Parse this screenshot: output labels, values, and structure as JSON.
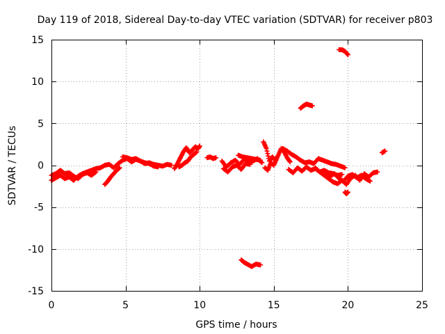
{
  "chart_data": {
    "type": "scatter",
    "title": "Day 119 of 2018, Sidereal Day-to-day VTEC variation (SDTVAR) for receiver p803",
    "xlabel": "GPS time / hours",
    "ylabel": "SDTVAR / TECUs",
    "xlim": [
      0,
      25
    ],
    "ylim": [
      -15,
      15
    ],
    "xticks": [
      0,
      5,
      10,
      15,
      20,
      25
    ],
    "yticks": [
      -15,
      -10,
      -5,
      0,
      5,
      10,
      15
    ],
    "xtick_labels": [
      "0",
      "5",
      "10",
      "15",
      "20",
      "25"
    ],
    "ytick_labels": [
      "-15",
      "-10",
      "-5",
      "0",
      "5",
      "10",
      "15"
    ],
    "grid": true,
    "marker": "+",
    "color": "#ff0000",
    "series": [
      {
        "name": "SDTVAR p803",
        "segments": [
          {
            "x": [
              0.0,
              0.3,
              0.6,
              0.9,
              1.2,
              1.5,
              1.8,
              2.1,
              2.4,
              2.7,
              3.0,
              3.3,
              3.6,
              3.9,
              4.2,
              4.5,
              4.8,
              5.1,
              5.4,
              5.7,
              6.0,
              6.3,
              6.6,
              6.9,
              7.2,
              7.5,
              7.8,
              8.1
            ],
            "y": [
              -1.8,
              -1.5,
              -1.2,
              -1.6,
              -1.4,
              -1.8,
              -1.3,
              -1.0,
              -0.8,
              -0.6,
              -0.4,
              -0.3,
              0.0,
              0.1,
              -0.3,
              0.2,
              0.6,
              0.8,
              0.4,
              0.7,
              0.5,
              0.2,
              0.3,
              0.1,
              0.0,
              -0.1,
              0.1,
              0.0
            ]
          },
          {
            "x": [
              0.0,
              0.3,
              0.6,
              0.9,
              1.2,
              1.5,
              1.8,
              2.1,
              2.4,
              2.7,
              3.0
            ],
            "y": [
              -1.2,
              -1.0,
              -0.6,
              -1.0,
              -0.9,
              -1.3,
              -1.6,
              -1.1,
              -0.9,
              -1.2,
              -0.8
            ]
          },
          {
            "x": [
              3.6,
              3.8,
              4.0,
              4.2,
              4.4,
              4.6
            ],
            "y": [
              -2.3,
              -1.9,
              -1.4,
              -1.0,
              -0.6,
              -0.3
            ]
          },
          {
            "x": [
              4.8,
              5.1,
              5.4,
              5.7,
              6.0,
              6.3,
              6.6,
              6.9,
              7.2
            ],
            "y": [
              1.0,
              0.9,
              0.7,
              0.8,
              0.5,
              0.3,
              0.2,
              -0.1,
              -0.2
            ]
          },
          {
            "x": [
              8.3,
              8.5,
              8.7,
              8.9,
              9.1,
              9.3,
              9.5,
              9.7,
              9.9,
              10.0
            ],
            "y": [
              -0.4,
              0.2,
              0.9,
              1.6,
              2.1,
              1.5,
              1.8,
              2.2,
              2.0,
              2.3
            ]
          },
          {
            "x": [
              8.6,
              8.8,
              9.0,
              9.2,
              9.4,
              9.6,
              9.8
            ],
            "y": [
              -0.2,
              0.0,
              0.3,
              0.5,
              1.0,
              1.3,
              1.6
            ]
          },
          {
            "x": [
              10.5,
              10.7,
              10.9,
              11.1
            ],
            "y": [
              0.9,
              1.0,
              0.8,
              0.9
            ]
          },
          {
            "x": [
              11.5,
              11.8,
              12.1,
              12.4,
              12.7,
              13.0,
              13.3,
              13.6,
              13.9,
              14.2
            ],
            "y": [
              0.5,
              -0.2,
              0.3,
              0.6,
              0.1,
              0.7,
              0.4,
              0.5,
              0.8,
              0.3
            ]
          },
          {
            "x": [
              11.6,
              11.9,
              12.2,
              12.5,
              12.8,
              13.1,
              13.4
            ],
            "y": [
              -0.4,
              -0.8,
              -0.2,
              0.0,
              -0.5,
              0.2,
              0.1
            ]
          },
          {
            "x": [
              12.6,
              12.9,
              13.2,
              13.5,
              13.8,
              14.1
            ],
            "y": [
              1.2,
              1.0,
              0.9,
              0.8,
              0.7,
              0.6
            ]
          },
          {
            "x": [
              14.3,
              14.5,
              14.7,
              14.9,
              15.1,
              15.3,
              15.5,
              15.7,
              15.9,
              16.1
            ],
            "y": [
              2.8,
              2.0,
              0.5,
              1.0,
              0.6,
              1.2,
              2.0,
              1.6,
              0.9,
              0.4
            ]
          },
          {
            "x": [
              14.4,
              14.6,
              14.8,
              15.0,
              15.2
            ],
            "y": [
              -0.3,
              -0.6,
              0.3,
              0.0,
              0.8
            ]
          },
          {
            "x": [
              15.6,
              15.9,
              16.2,
              16.5,
              16.8,
              17.1,
              17.4,
              17.7,
              18.0,
              18.3,
              18.6,
              18.9,
              19.2,
              19.5,
              19.8
            ],
            "y": [
              2.0,
              1.7,
              1.3,
              1.0,
              0.6,
              0.3,
              0.4,
              0.2,
              0.8,
              0.6,
              0.4,
              0.2,
              0.1,
              -0.1,
              -0.3
            ]
          },
          {
            "x": [
              16.0,
              16.3,
              16.6,
              16.9,
              17.2,
              17.5,
              17.8,
              18.1,
              18.4,
              18.7,
              19.0,
              19.3,
              19.6
            ],
            "y": [
              -0.5,
              -0.9,
              -0.3,
              -0.7,
              -0.2,
              -0.6,
              -0.4,
              -0.8,
              -0.6,
              -0.9,
              -1.0,
              -1.2,
              -1.1
            ]
          },
          {
            "x": [
              17.8,
              18.1,
              18.4,
              18.7,
              19.0,
              19.3,
              19.6,
              19.9,
              20.2,
              20.5,
              20.8,
              21.1,
              21.4,
              21.7,
              22.0
            ],
            "y": [
              -0.3,
              -0.8,
              -1.2,
              -1.6,
              -2.0,
              -2.2,
              -1.8,
              -2.3,
              -1.5,
              -1.2,
              -1.8,
              -1.0,
              -1.4,
              -0.9,
              -0.8
            ]
          },
          {
            "x": [
              18.5,
              18.8,
              19.1,
              19.4,
              19.7,
              20.0,
              20.3,
              20.6,
              20.9,
              21.2,
              21.5
            ],
            "y": [
              -0.8,
              -1.3,
              -1.0,
              -1.6,
              -1.9,
              -1.3,
              -1.1,
              -1.5,
              -1.2,
              -1.6,
              -1.9
            ]
          },
          {
            "x": [
              19.8,
              19.9,
              20.0
            ],
            "y": [
              -3.2,
              -3.4,
              -3.2
            ]
          },
          {
            "x": [
              22.3,
              22.5
            ],
            "y": [
              1.5,
              1.7
            ]
          },
          {
            "x": [
              16.8,
              17.0,
              17.2,
              17.4,
              17.6
            ],
            "y": [
              6.8,
              7.1,
              7.3,
              7.2,
              7.1
            ]
          },
          {
            "x": [
              19.4,
              19.6,
              19.8,
              20.0
            ],
            "y": [
              13.8,
              13.8,
              13.6,
              13.2
            ]
          },
          {
            "x": [
              12.8,
              13.0,
              13.2,
              13.5,
              13.8,
              14.1
            ],
            "y": [
              -11.3,
              -11.6,
              -11.8,
              -12.1,
              -11.8,
              -11.9
            ]
          }
        ]
      }
    ]
  }
}
